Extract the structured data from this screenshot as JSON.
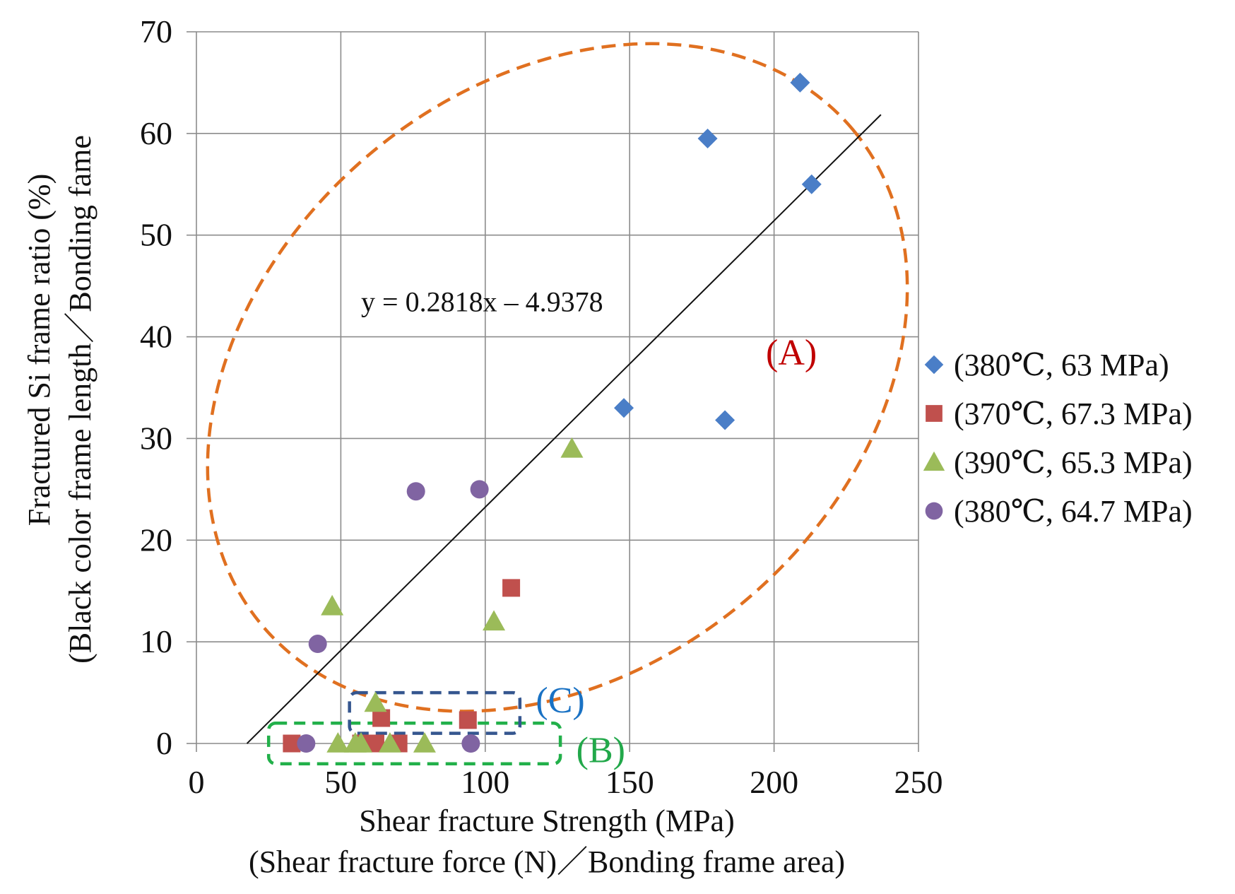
{
  "chart_data": {
    "type": "scatter",
    "xlabel": "Shear fracture Strength (MPa)",
    "xlabel2": "(Shear fracture force (N)／Bonding frame area)",
    "ylabel": "Fractured Si frame ratio (%)",
    "ylabel2": "(Black color frame length／Bonding fame",
    "xlim": [
      0,
      250
    ],
    "ylim": [
      0,
      70
    ],
    "xticks": [
      0,
      50,
      100,
      150,
      200,
      250
    ],
    "yticks": [
      0,
      10,
      20,
      30,
      40,
      50,
      60,
      70
    ],
    "grid": true,
    "legend_position": "right",
    "series": [
      {
        "name": "(380℃, 63 MPa)",
        "marker": "diamond",
        "color": "#4a7ec7",
        "points": [
          [
            177,
            59.5
          ],
          [
            209,
            65
          ],
          [
            213,
            55
          ],
          [
            148,
            33
          ],
          [
            183,
            31.8
          ]
        ]
      },
      {
        "name": "(370℃, 67.3 MPa)",
        "marker": "square",
        "color": "#c0504d",
        "points": [
          [
            33,
            0
          ],
          [
            57,
            0
          ],
          [
            62,
            0
          ],
          [
            64,
            2.5
          ],
          [
            70,
            0
          ],
          [
            94,
            2.3
          ],
          [
            109,
            15.3
          ]
        ]
      },
      {
        "name": "(390℃, 65.3 MPa)",
        "marker": "triangle",
        "color": "#9bbb59",
        "points": [
          [
            47,
            13.5
          ],
          [
            49,
            0
          ],
          [
            55,
            0
          ],
          [
            57,
            0
          ],
          [
            62,
            4
          ],
          [
            67,
            0
          ],
          [
            79,
            0
          ],
          [
            103,
            12
          ],
          [
            130,
            29
          ]
        ]
      },
      {
        "name": "(380℃, 64.7 MPa)",
        "marker": "circle",
        "color": "#8064a2",
        "points": [
          [
            38,
            0
          ],
          [
            42,
            9.8
          ],
          [
            76,
            24.8
          ],
          [
            98,
            25
          ],
          [
            95,
            0
          ]
        ]
      }
    ],
    "trendline": {
      "label": "y = 0.2818x – 4.9378",
      "slope": 0.2818,
      "intercept": -4.9378,
      "x_range": [
        17.5,
        237
      ],
      "color": "#111111"
    },
    "annotations": [
      {
        "label": "(A)",
        "color": "#c00000",
        "shape": "ellipse",
        "stroke": "#e07020",
        "label_at": [
          206,
          38.5
        ],
        "center": [
          125,
          36
        ],
        "semi_axis_x": 133.5,
        "semi_axis_y": 28.7,
        "angle_deg": -40
      },
      {
        "label": "(B)",
        "color": "#22a84a",
        "shape": "rect",
        "stroke": "#22b04a",
        "label_at": [
          140,
          -0.6
        ],
        "x_range": [
          25,
          126
        ],
        "y_range": [
          -2,
          2
        ]
      },
      {
        "label": "(C)",
        "color": "#1a72c4",
        "shape": "rect",
        "stroke": "#35568f",
        "label_at": [
          126,
          4.3
        ],
        "x_range": [
          53,
          112
        ],
        "y_range": [
          1,
          5
        ]
      }
    ]
  }
}
